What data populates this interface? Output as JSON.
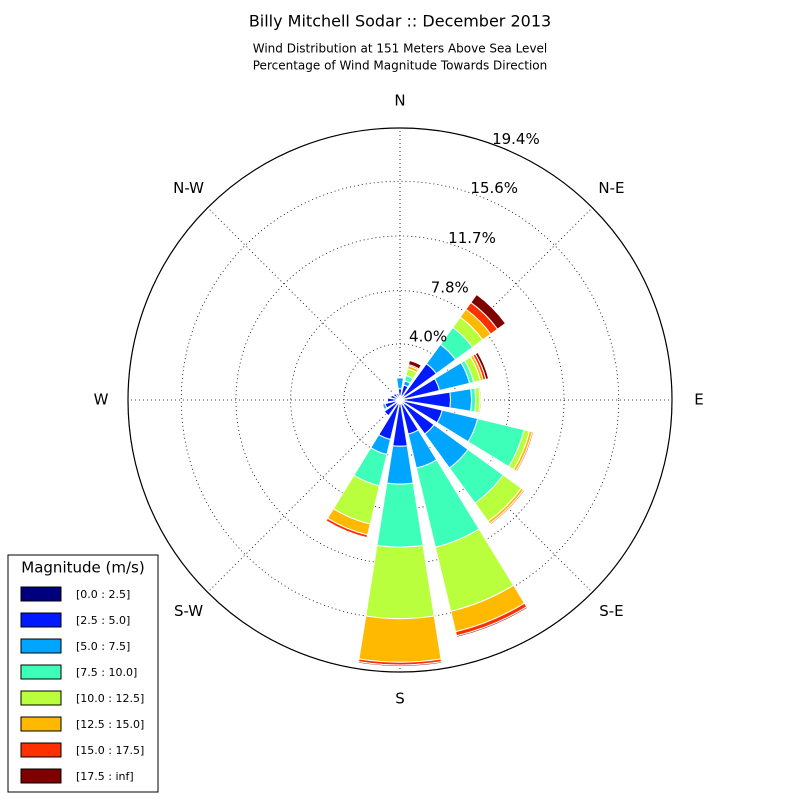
{
  "chart_data": {
    "type": "windrose",
    "title": "Billy Mitchell Sodar :: December 2013",
    "subtitle": [
      "Wind Distribution at 151 Meters Above Sea Level",
      "Percentage of Wind Magnitude Towards Direction"
    ],
    "x": [
      0,
      22.5,
      45,
      67.5,
      90,
      112.5,
      135,
      157.5,
      180,
      202.5,
      225,
      247.5,
      270,
      292.5,
      315,
      337.5
    ],
    "xticks": [
      {
        "value": 0,
        "label": "N"
      },
      {
        "value": 45,
        "label": "N-E"
      },
      {
        "value": 90,
        "label": "E"
      },
      {
        "value": 135,
        "label": "S-E"
      },
      {
        "value": 180,
        "label": "S"
      },
      {
        "value": 225,
        "label": "S-W"
      },
      {
        "value": 270,
        "label": "W"
      },
      {
        "value": 315,
        "label": "N-W"
      }
    ],
    "ylim": [
      0,
      19.4
    ],
    "yticks": [
      {
        "value": 4.0,
        "label": "4.0%"
      },
      {
        "value": 7.8,
        "label": "7.8%"
      },
      {
        "value": 11.7,
        "label": "11.7%"
      },
      {
        "value": 15.6,
        "label": "15.6%"
      },
      {
        "value": 19.4,
        "label": "19.4%"
      }
    ],
    "grid": true,
    "legend_title": "Magnitude (m/s)",
    "legend_position": "lower-left",
    "series": [
      {
        "name": "[0.0 : 2.5]",
        "color": "#00007f",
        "values": [
          0.3,
          0.3,
          0.4,
          0.3,
          0.3,
          0.3,
          0.4,
          0.3,
          0.2,
          0.3,
          0.3,
          0.3,
          0.3,
          0.2,
          0.2,
          0.2
        ]
      },
      {
        "name": "[2.5 : 5.0]",
        "color": "#0019ff",
        "values": [
          0.5,
          0.8,
          2.8,
          2.6,
          3.3,
          2.8,
          2.6,
          2.2,
          3.1,
          2.6,
          1.1,
          0.8,
          0.6,
          0.5,
          0.4,
          0.3
        ]
      },
      {
        "name": "[5.0 : 7.5]",
        "color": "#00a5ff",
        "values": [
          0.8,
          0.3,
          1.7,
          2.2,
          1.5,
          2.6,
          3.0,
          2.5,
          2.7,
          1.1,
          0,
          0.2,
          0,
          0,
          0,
          0
        ]
      },
      {
        "name": "[7.5 : 10.0]",
        "color": "#3dffba",
        "values": [
          0,
          0.4,
          1.5,
          0.3,
          0.3,
          3.4,
          3.1,
          5.8,
          4.5,
          2.3,
          0,
          0,
          0,
          0,
          0,
          0
        ]
      },
      {
        "name": "[10.0 : 12.5]",
        "color": "#baff3d",
        "values": [
          0,
          0.5,
          0.9,
          0.5,
          0.3,
          0.4,
          1.6,
          4.7,
          5.1,
          2.8,
          0,
          0,
          0,
          0,
          0,
          0
        ]
      },
      {
        "name": "[12.5 : 15.0]",
        "color": "#ffb900",
        "values": [
          0,
          0.2,
          0.7,
          0.2,
          0.1,
          0.2,
          0.2,
          1.5,
          3.1,
          0.8,
          0,
          0,
          0,
          0,
          0,
          0
        ]
      },
      {
        "name": "[15.0 : 17.5]",
        "color": "#ff3000",
        "values": [
          0,
          0.1,
          0.6,
          0.2,
          0,
          0.1,
          0.1,
          0.3,
          0.2,
          0.2,
          0,
          0,
          0,
          0,
          0,
          0
        ]
      },
      {
        "name": "[17.5 : inf]",
        "color": "#7f0000",
        "values": [
          0,
          0.3,
          0.7,
          0.2,
          0,
          0,
          0,
          0.1,
          0.1,
          0,
          0,
          0,
          0,
          0,
          0,
          0
        ]
      }
    ]
  }
}
